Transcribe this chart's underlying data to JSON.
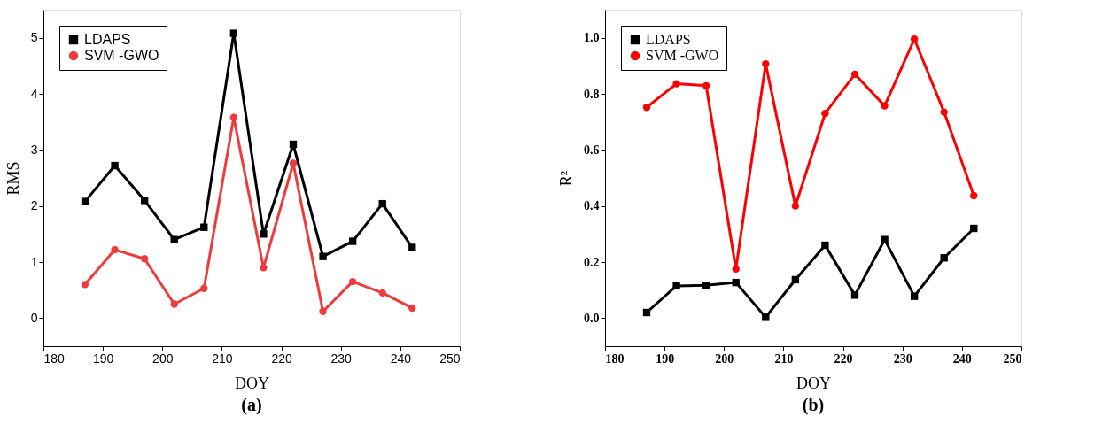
{
  "chart_data": [
    {
      "type": "line",
      "xlabel": "DOY",
      "ylabel": "RMS",
      "annotations": [
        "(a)"
      ],
      "x": [
        187,
        192,
        197,
        202,
        207,
        212,
        217,
        222,
        227,
        232,
        237,
        242
      ],
      "xlim": [
        180,
        250
      ],
      "xticks": [
        180,
        190,
        200,
        210,
        220,
        230,
        240,
        250
      ],
      "ylim": [
        -0.5,
        5.5
      ],
      "yticks": [
        0,
        1,
        2,
        3,
        4,
        5
      ],
      "legend": "top left",
      "grid": false,
      "line_style": "solid",
      "series": [
        {
          "name": "LDAPS",
          "color": "#000000",
          "marker": "square",
          "values": [
            2.08,
            2.72,
            2.1,
            1.4,
            1.62,
            5.08,
            1.5,
            3.1,
            1.1,
            1.37,
            2.04,
            1.26
          ]
        },
        {
          "name": "SVM -GWO",
          "color": "#ef3b3b",
          "marker": "circle",
          "values": [
            0.6,
            1.22,
            1.06,
            0.25,
            0.53,
            3.58,
            0.9,
            2.76,
            0.12,
            0.65,
            0.45,
            0.18
          ]
        }
      ]
    },
    {
      "type": "line",
      "xlabel": "DOY",
      "ylabel": "R²",
      "annotations": [
        "(b)"
      ],
      "x": [
        187,
        192,
        197,
        202,
        207,
        212,
        217,
        222,
        227,
        232,
        237,
        242
      ],
      "xlim": [
        180,
        250
      ],
      "xticks": [
        180,
        190,
        200,
        210,
        220,
        230,
        240,
        250
      ],
      "ylim": [
        -0.1,
        1.1
      ],
      "yticks": [
        {
          "value": 0,
          "label": "0.0"
        },
        0.2,
        0.4,
        0.6,
        0.8,
        {
          "value": 1,
          "label": "1.0"
        }
      ],
      "legend": "top left",
      "grid": false,
      "line_style": "solid",
      "series": [
        {
          "name": "LDAPS",
          "color": "#000000",
          "marker": "square",
          "values": [
            0.02,
            0.115,
            0.117,
            0.127,
            0.003,
            0.137,
            0.26,
            0.082,
            0.28,
            0.078,
            0.215,
            0.32
          ]
        },
        {
          "name": "SVM -GWO",
          "color": "#ff0000",
          "marker": "circle",
          "values": [
            0.752,
            0.836,
            0.829,
            0.175,
            0.907,
            0.4,
            0.73,
            0.87,
            0.757,
            0.995,
            0.735,
            0.437
          ]
        }
      ]
    }
  ]
}
